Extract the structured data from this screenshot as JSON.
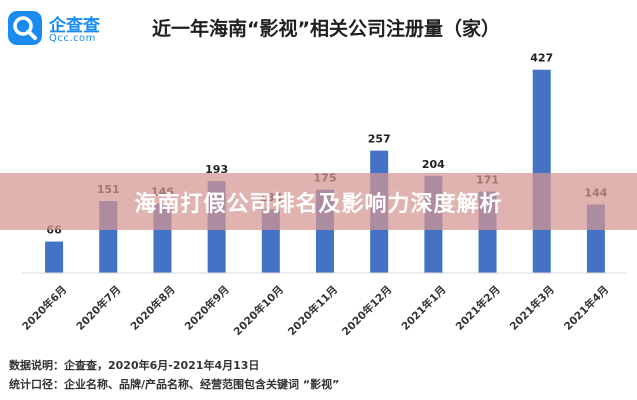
{
  "brand": {
    "name": "企查查",
    "domain": "Qcc.com",
    "color": "#1a8cf0"
  },
  "chart_data": {
    "type": "bar",
    "title": "近一年海南“影视”相关公司注册量（家）",
    "categories": [
      "2020年6月",
      "2020年7月",
      "2020年8月",
      "2020年9月",
      "2020年10月",
      "2020年11月",
      "2020年12月",
      "2021年1月",
      "2021年2月",
      "2021年3月",
      "2021年4月"
    ],
    "values": [
      66,
      151,
      146,
      193,
      134,
      175,
      257,
      204,
      171,
      427,
      144
    ],
    "data_labels": [
      "66",
      "151",
      "146",
      "193",
      "134",
      "175",
      "257",
      "204",
      "171",
      "427",
      "144"
    ],
    "bar_color": "#4472c4",
    "ylim": [
      0,
      460
    ],
    "grid": false,
    "xlabel": "",
    "ylabel": ""
  },
  "banner": {
    "text": "海南打假公司排名及影响力深度解析"
  },
  "footer": {
    "source": "数据说明：企查查，2020年6月-2021年4月13日",
    "scope": "统计口径：企业名称、品牌/产品名称、经营范围包含关键词 “影视”"
  }
}
